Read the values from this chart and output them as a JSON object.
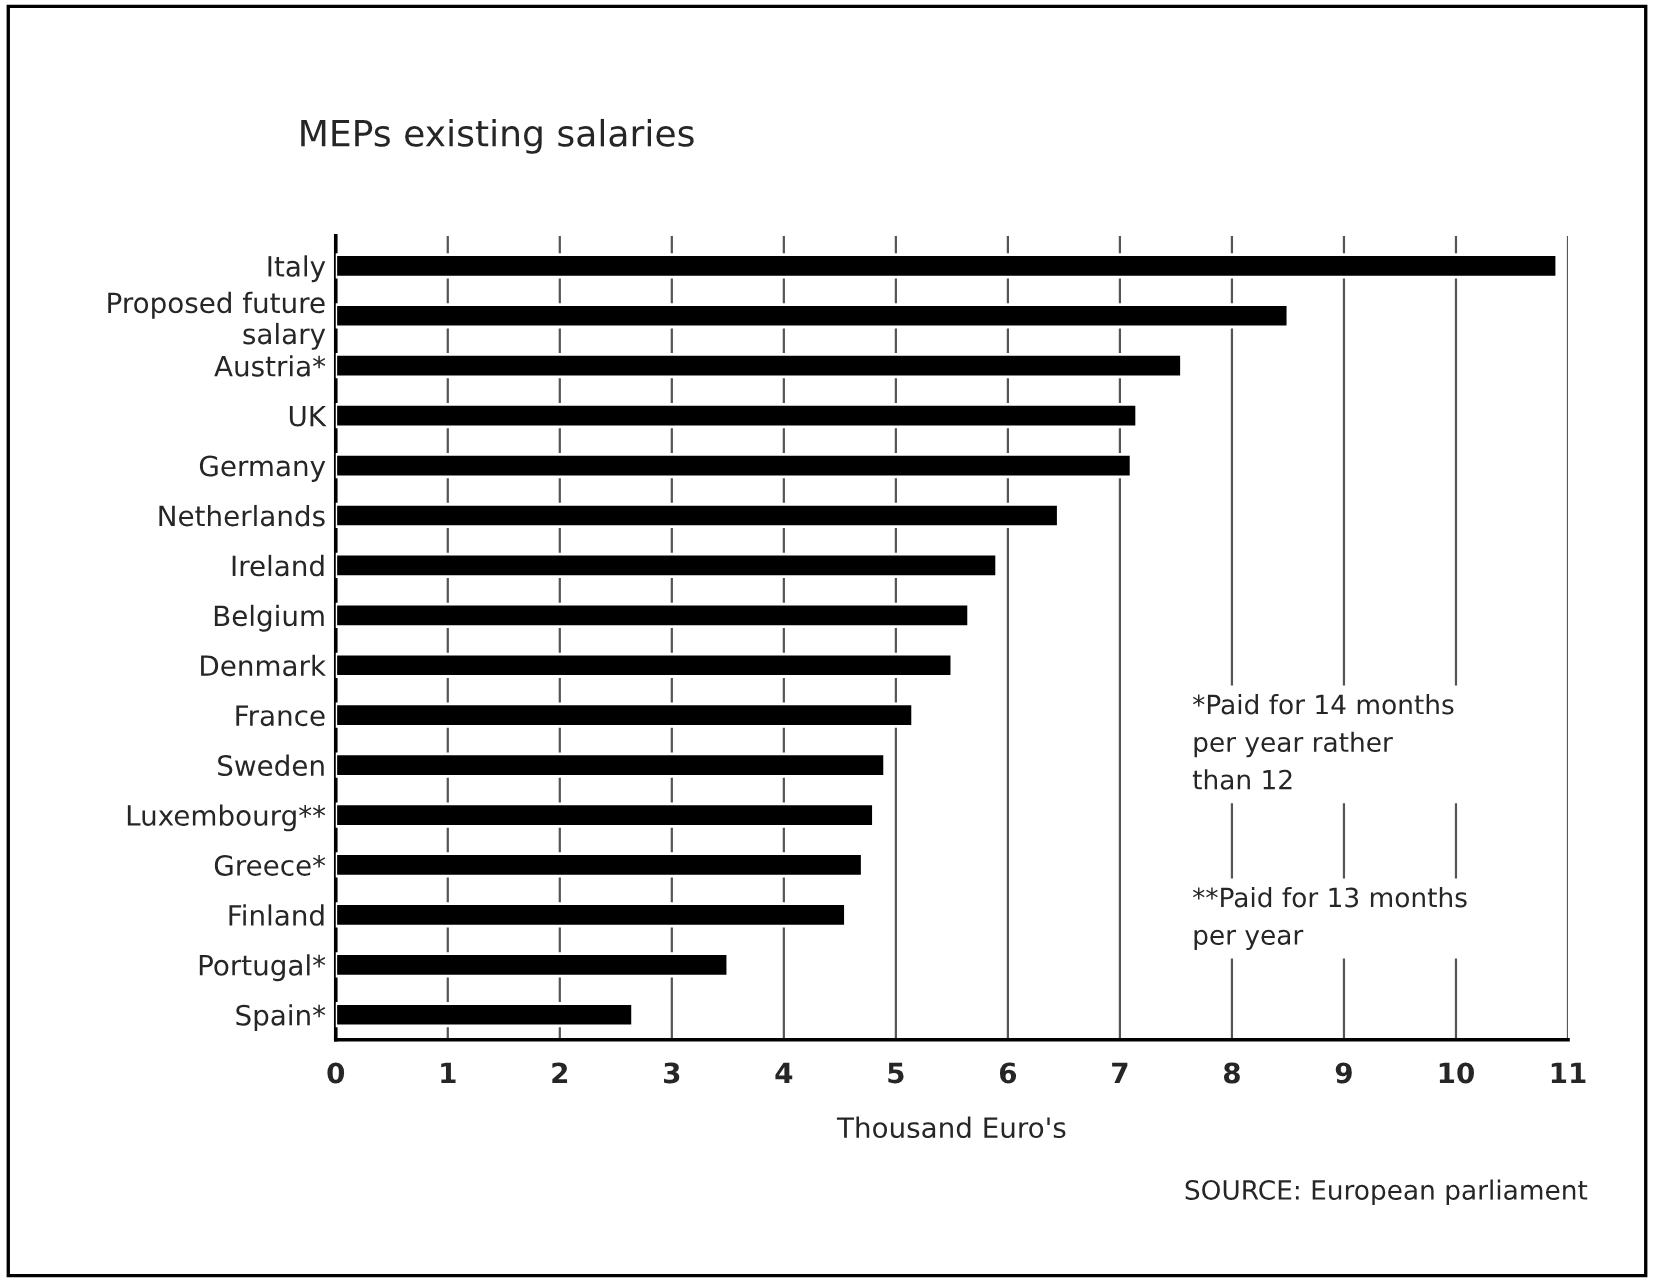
{
  "chart_data": {
    "type": "bar",
    "orientation": "horizontal",
    "title": "MEPs existing salaries",
    "categories": [
      "Italy",
      "Proposed future\nsalary",
      "Austria*",
      "UK",
      "Germany",
      "Netherlands",
      "Ireland",
      "Belgium",
      "Denmark",
      "France",
      "Sweden",
      "Luxembourg**",
      "Greece*",
      "Finland",
      "Portugal*",
      "Spain*"
    ],
    "values": [
      10.9,
      8.5,
      7.55,
      7.15,
      7.1,
      6.45,
      5.9,
      5.65,
      5.5,
      5.15,
      4.9,
      4.8,
      4.7,
      4.55,
      3.5,
      2.65
    ],
    "color": "#000000",
    "xlabel": "Thousand Euro's",
    "xlim": [
      0,
      11
    ],
    "xticks": [
      0,
      1,
      2,
      3,
      4,
      5,
      6,
      7,
      8,
      9,
      10,
      11
    ],
    "grid": "x",
    "annotations": [
      "*Paid for 14 months\nper year rather\nthan 12",
      "**Paid for 13 months\nper year",
      "SOURCE: European parliament"
    ]
  }
}
